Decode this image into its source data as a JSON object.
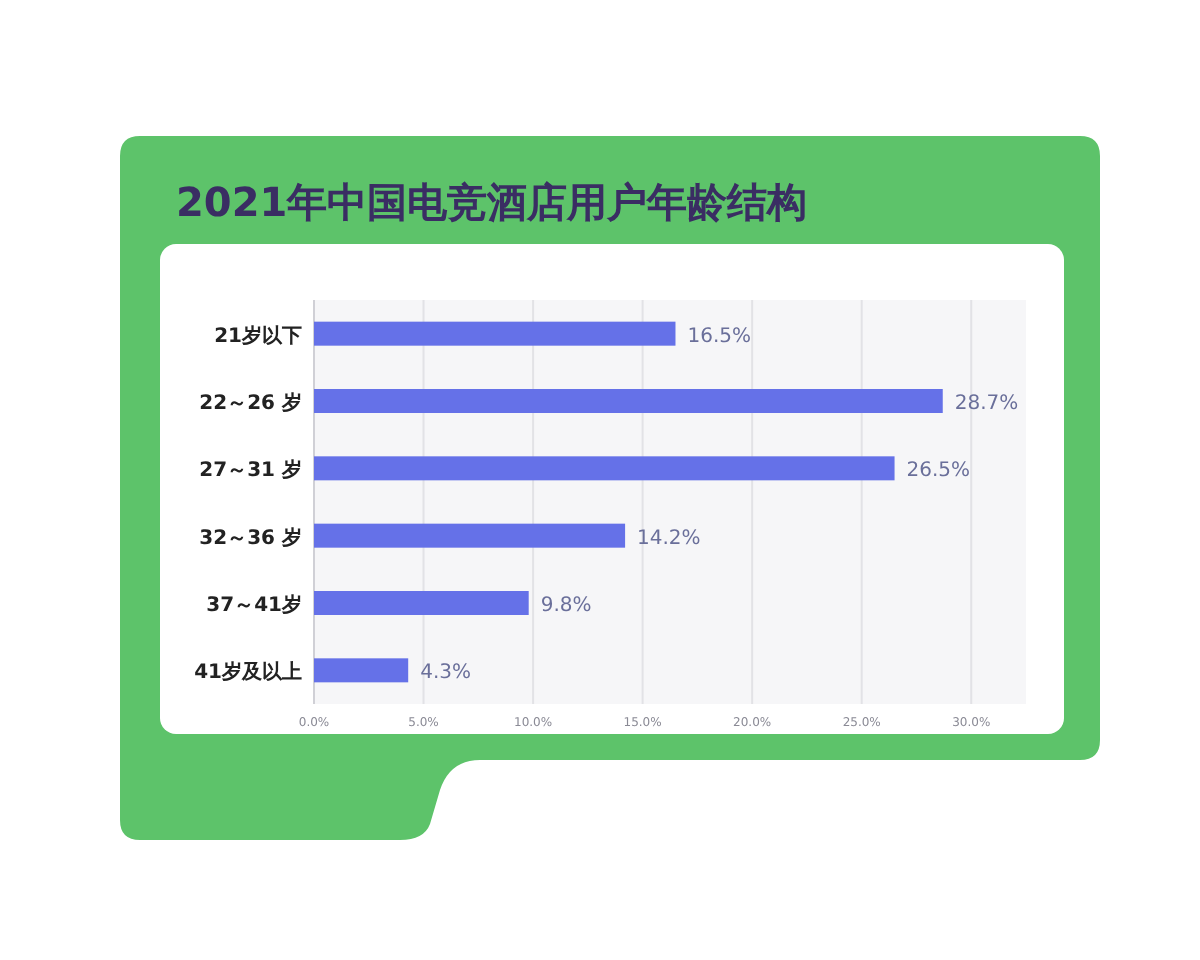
{
  "chart_data": {
    "type": "bar",
    "orientation": "horizontal",
    "title": "2021年中国电竞酒店用户年龄结构",
    "categories": [
      "21岁以下",
      "22～26 岁",
      "27～31 岁",
      "32～36 岁",
      "37～41岁",
      "41岁及以上"
    ],
    "values": [
      16.5,
      28.7,
      26.5,
      14.2,
      9.8,
      4.3
    ],
    "value_labels": [
      "16.5%",
      "28.7%",
      "26.5%",
      "14.2%",
      "9.8%",
      "4.3%"
    ],
    "color": "#6571e8",
    "grid": "x",
    "xlim": [
      0,
      32.5
    ],
    "xticks": [
      {
        "value": 0,
        "label": "0.0%"
      },
      {
        "value": 5,
        "label": "5.0%"
      },
      {
        "value": 10,
        "label": "10.0%"
      },
      {
        "value": 15,
        "label": "15.0%"
      },
      {
        "value": 20,
        "label": "20.0%"
      },
      {
        "value": 25,
        "label": "25.0%"
      },
      {
        "value": 30,
        "label": "30.0%"
      }
    ]
  }
}
